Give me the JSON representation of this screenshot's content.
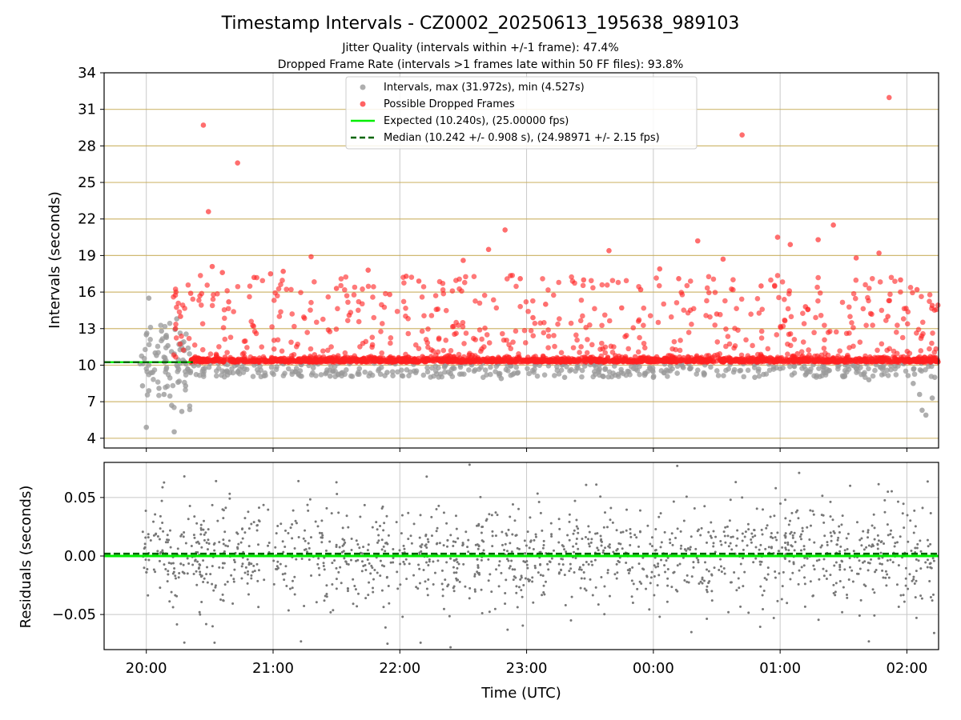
{
  "figure": {
    "title": "Timestamp Intervals - CZ0002_20250613_195638_989103",
    "subtitle1": "Jitter Quality (intervals within +/-1 frame): 47.4%",
    "subtitle2": "Dropped Frame Rate (intervals >1 frames late within 50 FF files): 93.8%",
    "colors": {
      "intervals": "#9a9a9a",
      "dropped": "#ff2020",
      "expected": "#00ee00",
      "median": "#006400",
      "hline": "#c8ad5a",
      "grid": "#c8c8c8",
      "residual_points": "#777777"
    }
  },
  "chart_data": [
    {
      "type": "scatter",
      "name": "intervals",
      "ylabel": "Intervals (seconds)",
      "ylim": [
        3.2,
        34
      ],
      "xlim_hours": [
        19.667,
        26.25
      ],
      "yticks": [
        4,
        7,
        10,
        13,
        16,
        19,
        22,
        25,
        28,
        31,
        34
      ],
      "ytick_labels": [
        "4",
        "7",
        "10",
        "13",
        "16",
        "19",
        "22",
        "25",
        "28",
        "31",
        "34"
      ],
      "grid": true,
      "horizontal_reference_lines": [
        4,
        7,
        10,
        13,
        16,
        19,
        22,
        25,
        28,
        31
      ],
      "legend_placement": "top-center",
      "legend": [
        {
          "label": "Intervals, max (31.972s), min (4.527s)",
          "marker": "dot",
          "color_key": "intervals"
        },
        {
          "label": "Possible Dropped Frames",
          "marker": "dot",
          "color_key": "dropped"
        },
        {
          "label": "Expected (10.240s), (25.00000 fps)",
          "marker": "line",
          "color_key": "expected"
        },
        {
          "label": "Median (10.242 +/- 0.908 s), (24.98971 +/- 2.15 fps)",
          "marker": "dashed",
          "color_key": "median"
        }
      ],
      "expected_value": 10.24,
      "median_value": 10.242,
      "expected_line_extent_hours": [
        19.667,
        20.367
      ],
      "stats": {
        "max": 31.972,
        "min": 4.527
      },
      "series": [
        {
          "name": "Intervals, max (31.972s), min (4.527s)",
          "points": [
            [
              20.0,
              4.9
            ],
            [
              20.22,
              4.53
            ],
            [
              19.97,
              8.3
            ],
            [
              20.02,
              7.9
            ],
            [
              20.05,
              9.4
            ],
            [
              20.07,
              11.0
            ],
            [
              20.1,
              8.1
            ],
            [
              20.12,
              12.8
            ],
            [
              20.14,
              7.6
            ],
            [
              20.17,
              11.6
            ],
            [
              20.2,
              6.7
            ],
            [
              20.25,
              8.6
            ],
            [
              20.28,
              6.2
            ],
            [
              20.31,
              8.3
            ],
            [
              20.02,
              15.5
            ],
            [
              20.0,
              12.5
            ],
            [
              20.08,
              10.8
            ],
            [
              20.16,
              9.8
            ],
            [
              20.24,
              13.8
            ],
            [
              20.3,
              11.2
            ],
            [
              21.2,
              9.3
            ],
            [
              21.45,
              9.1
            ],
            [
              21.9,
              9.4
            ],
            [
              22.4,
              9.3
            ],
            [
              22.8,
              8.9
            ],
            [
              23.3,
              9.0
            ],
            [
              23.6,
              9.1
            ],
            [
              24.0,
              9.0
            ],
            [
              24.4,
              9.2
            ],
            [
              24.8,
              9.0
            ],
            [
              25.2,
              9.2
            ],
            [
              25.7,
              8.8
            ],
            [
              26.05,
              8.5
            ],
            [
              26.1,
              7.6
            ],
            [
              26.12,
              6.3
            ],
            [
              26.15,
              5.9
            ],
            [
              26.2,
              7.3
            ],
            [
              26.22,
              9.0
            ]
          ]
        },
        {
          "name": "Possible Dropped Frames",
          "points": [
            [
              20.45,
              29.7
            ],
            [
              20.49,
              22.6
            ],
            [
              20.72,
              26.6
            ],
            [
              24.7,
              28.9
            ],
            [
              25.86,
              31.97
            ],
            [
              20.23,
              13.0
            ],
            [
              20.27,
              14.0
            ],
            [
              20.35,
              15.9
            ],
            [
              20.52,
              18.1
            ],
            [
              20.6,
              17.6
            ],
            [
              20.65,
              15.2
            ],
            [
              20.85,
              17.2
            ],
            [
              20.98,
              17.5
            ],
            [
              21.08,
              17.7
            ],
            [
              21.3,
              18.9
            ],
            [
              21.5,
              16.3
            ],
            [
              21.75,
              17.8
            ],
            [
              21.92,
              15.8
            ],
            [
              22.05,
              17.3
            ],
            [
              22.15,
              16.9
            ],
            [
              22.5,
              18.6
            ],
            [
              22.7,
              19.5
            ],
            [
              22.83,
              21.1
            ],
            [
              22.95,
              17.1
            ],
            [
              23.15,
              15.0
            ],
            [
              23.45,
              17.0
            ],
            [
              23.65,
              19.4
            ],
            [
              23.9,
              16.2
            ],
            [
              24.05,
              17.9
            ],
            [
              24.2,
              17.1
            ],
            [
              24.35,
              20.2
            ],
            [
              24.55,
              18.7
            ],
            [
              24.85,
              16.5
            ],
            [
              24.98,
              20.5
            ],
            [
              25.08,
              19.9
            ],
            [
              25.3,
              20.3
            ],
            [
              25.42,
              21.5
            ],
            [
              25.6,
              18.8
            ],
            [
              25.78,
              19.2
            ],
            [
              25.95,
              17.0
            ],
            [
              26.08,
              16.2
            ],
            [
              26.2,
              14.9
            ],
            [
              21.6,
              14.1
            ],
            [
              22.3,
              14.6
            ],
            [
              23.05,
              13.9
            ],
            [
              23.75,
              14.7
            ],
            [
              24.5,
              14.2
            ],
            [
              25.2,
              14.8
            ],
            [
              25.85,
              14.0
            ]
          ]
        }
      ]
    },
    {
      "type": "scatter",
      "name": "residuals",
      "xlabel": "Time (UTC)",
      "ylabel": "Residuals (seconds)",
      "ylim": [
        -0.08,
        0.08
      ],
      "yticks": [
        -0.05,
        0.0,
        0.05
      ],
      "ytick_labels": [
        "−0.05",
        "0.00",
        "0.05"
      ],
      "xticks_hours": [
        20,
        21,
        22,
        23,
        24,
        25,
        26
      ],
      "xtick_labels": [
        "20:00",
        "21:00",
        "22:00",
        "23:00",
        "00:00",
        "01:00",
        "02:00"
      ],
      "grid": true,
      "expected_value": 0.0,
      "median_value": 0.002,
      "points": [
        [
          20.3,
          0.068
        ],
        [
          20.55,
          0.064
        ],
        [
          21.2,
          0.064
        ],
        [
          21.5,
          0.063
        ],
        [
          22.55,
          0.078
        ],
        [
          23.55,
          0.061
        ],
        [
          25.15,
          0.071
        ],
        [
          20.3,
          -0.074
        ],
        [
          20.42,
          -0.048
        ],
        [
          21.22,
          -0.073
        ],
        [
          22.4,
          -0.078
        ],
        [
          22.85,
          -0.063
        ],
        [
          23.35,
          -0.055
        ],
        [
          24.05,
          -0.052
        ],
        [
          24.3,
          -0.065
        ],
        [
          24.95,
          -0.053
        ],
        [
          25.7,
          -0.073
        ],
        [
          26.2,
          -0.038
        ],
        [
          25.85,
          0.055
        ],
        [
          24.7,
          0.05
        ]
      ]
    }
  ]
}
